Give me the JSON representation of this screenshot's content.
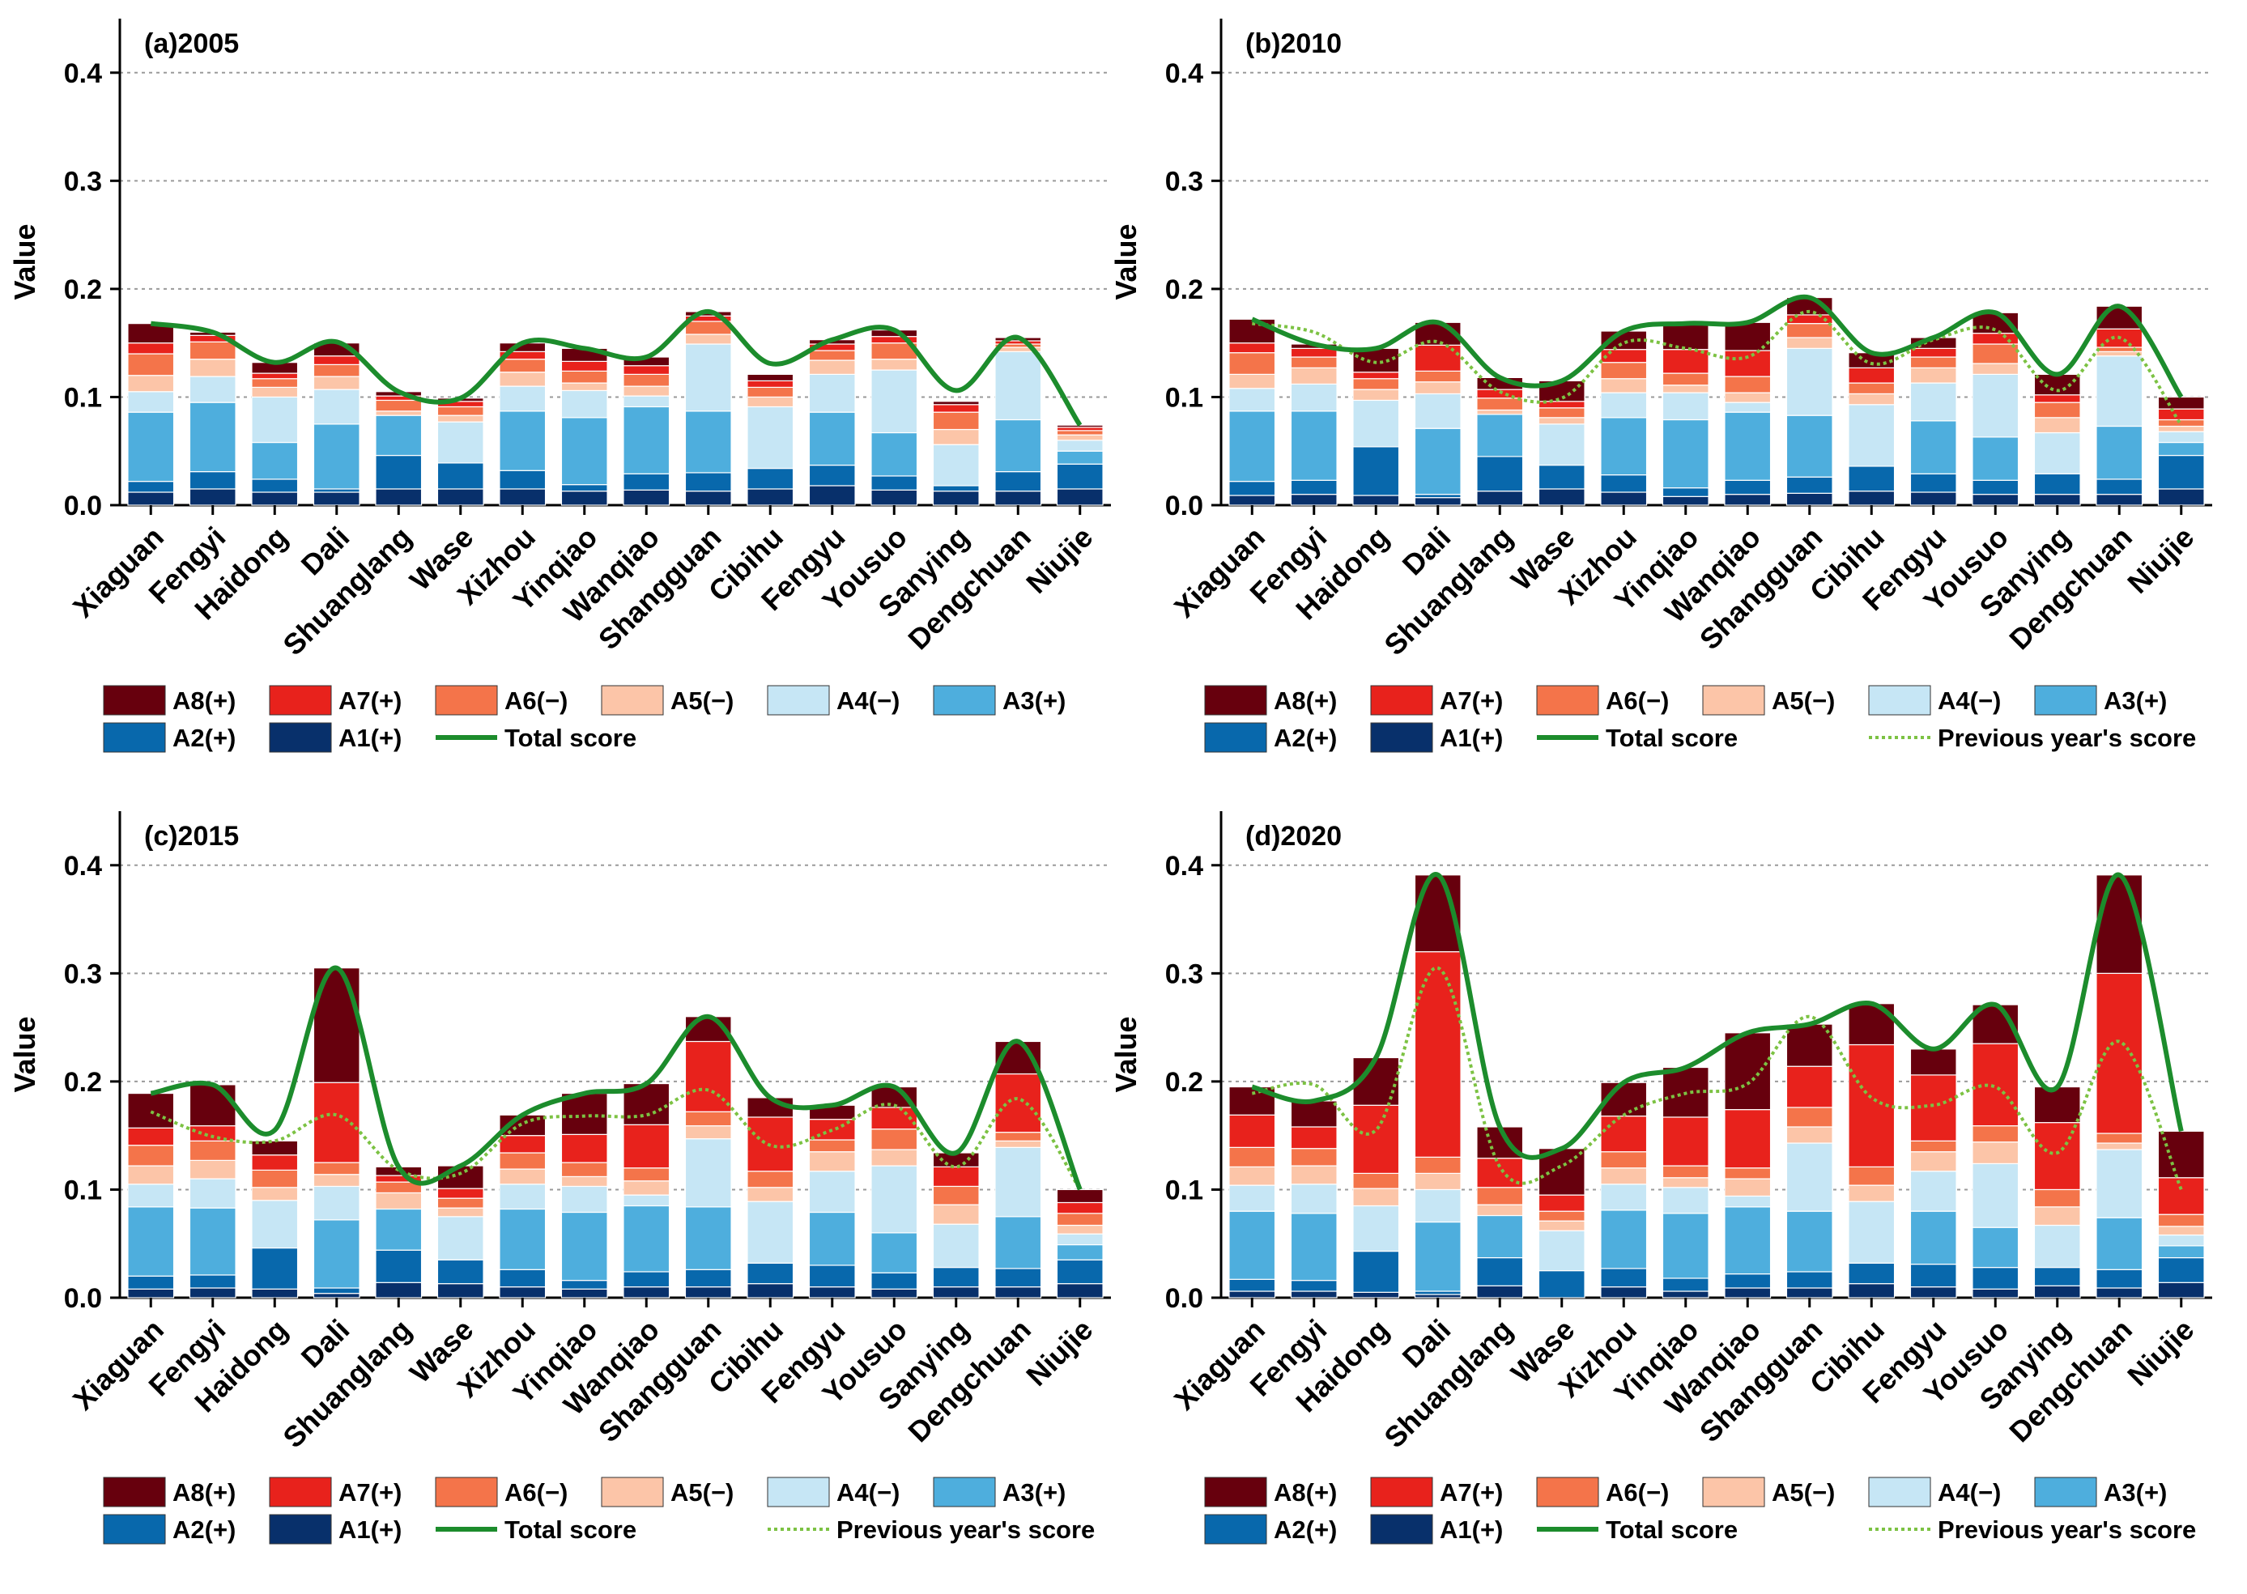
{
  "chart_data": {
    "type": "bar",
    "stacked": true,
    "ylabel": "Value",
    "ylim": [
      0,
      0.45
    ],
    "yticks": [
      0.0,
      0.1,
      0.2,
      0.3,
      0.4
    ],
    "ytick_labels": [
      "0.0",
      "0.1",
      "0.2",
      "0.3",
      "0.4"
    ],
    "categories": [
      "Xiaguan",
      "Fengyi",
      "Haidong",
      "Dali",
      "Shuanglang",
      "Wase",
      "Xizhou",
      "Yinqiao",
      "Wanqiao",
      "Shangguan",
      "Cibihu",
      "Fengyu",
      "Yousuo",
      "Sanying",
      "Dengchuan",
      "Niujie"
    ],
    "series_names": [
      "A1(+)",
      "A2(+)",
      "A3(+)",
      "A4(−)",
      "A5(−)",
      "A6(−)",
      "A7(+)",
      "A8(+)"
    ],
    "legend_order": [
      "A8(+)",
      "A7(+)",
      "A6(−)",
      "A5(−)",
      "A4(−)",
      "A3(+)",
      "A2(+)",
      "A1(+)"
    ],
    "colors": {
      "A1(+)": "#08306b",
      "A2(+)": "#0868ac",
      "A3(+)": "#4eaedd",
      "A4(−)": "#c6e6f5",
      "A5(−)": "#fcc5a8",
      "A6(−)": "#f4744a",
      "A7(+)": "#e8221c",
      "A8(+)": "#67000d",
      "total": "#1c8c2c",
      "previous": "#7cc243"
    },
    "legend_total": "Total score",
    "legend_previous": "Previous year's score",
    "panels": [
      {
        "title": "(a)2005",
        "series": [
          {
            "name": "A1(+)",
            "values": [
              0.012,
              0.015,
              0.012,
              0.012,
              0.015,
              0.015,
              0.015,
              0.013,
              0.014,
              0.013,
              0.015,
              0.018,
              0.014,
              0.013,
              0.013,
              0.015
            ]
          },
          {
            "name": "A2(+)",
            "values": [
              0.01,
              0.016,
              0.012,
              0.003,
              0.031,
              0.024,
              0.017,
              0.006,
              0.015,
              0.017,
              0.019,
              0.019,
              0.013,
              0.005,
              0.018,
              0.023
            ]
          },
          {
            "name": "A3(+)",
            "values": [
              0.064,
              0.064,
              0.034,
              0.06,
              0.037,
              0.0,
              0.055,
              0.062,
              0.062,
              0.057,
              0.0,
              0.049,
              0.04,
              0.0,
              0.048,
              0.012
            ]
          },
          {
            "name": "A4(−)",
            "values": [
              0.019,
              0.024,
              0.042,
              0.032,
              0.0,
              0.038,
              0.023,
              0.025,
              0.01,
              0.062,
              0.057,
              0.035,
              0.058,
              0.038,
              0.063,
              0.01
            ]
          },
          {
            "name": "A5(−)",
            "values": [
              0.015,
              0.016,
              0.009,
              0.012,
              0.004,
              0.006,
              0.013,
              0.007,
              0.009,
              0.009,
              0.009,
              0.013,
              0.01,
              0.014,
              0.004,
              0.005
            ]
          },
          {
            "name": "A6(−)",
            "values": [
              0.02,
              0.016,
              0.008,
              0.011,
              0.01,
              0.008,
              0.012,
              0.011,
              0.011,
              0.012,
              0.009,
              0.009,
              0.015,
              0.016,
              0.003,
              0.004
            ]
          },
          {
            "name": "A7(+)",
            "values": [
              0.01,
              0.006,
              0.005,
              0.008,
              0.004,
              0.005,
              0.007,
              0.009,
              0.008,
              0.005,
              0.006,
              0.006,
              0.006,
              0.007,
              0.003,
              0.003
            ]
          },
          {
            "name": "A8(+)",
            "values": [
              0.018,
              0.003,
              0.01,
              0.012,
              0.004,
              0.003,
              0.008,
              0.012,
              0.008,
              0.004,
              0.006,
              0.004,
              0.006,
              0.003,
              0.003,
              0.002
            ]
          }
        ],
        "total": [
          0.168,
          0.16,
          0.132,
          0.151,
          0.105,
          0.099,
          0.15,
          0.145,
          0.137,
          0.179,
          0.131,
          0.153,
          0.162,
          0.106,
          0.155,
          0.074
        ],
        "previous": null
      },
      {
        "title": "(b)2010",
        "series": [
          {
            "name": "A1(+)",
            "values": [
              0.009,
              0.01,
              0.009,
              0.007,
              0.013,
              0.015,
              0.012,
              0.008,
              0.01,
              0.011,
              0.013,
              0.012,
              0.01,
              0.01,
              0.01,
              0.015
            ]
          },
          {
            "name": "A2(+)",
            "values": [
              0.013,
              0.013,
              0.045,
              0.003,
              0.032,
              0.022,
              0.016,
              0.008,
              0.013,
              0.015,
              0.023,
              0.017,
              0.013,
              0.019,
              0.014,
              0.031
            ]
          },
          {
            "name": "A3(+)",
            "values": [
              0.065,
              0.064,
              0.0,
              0.061,
              0.039,
              0.0,
              0.053,
              0.063,
              0.063,
              0.057,
              0.0,
              0.049,
              0.04,
              0.0,
              0.049,
              0.012
            ]
          },
          {
            "name": "A4(−)",
            "values": [
              0.021,
              0.025,
              0.043,
              0.032,
              0.0,
              0.038,
              0.023,
              0.025,
              0.009,
              0.062,
              0.057,
              0.035,
              0.058,
              0.038,
              0.065,
              0.01
            ]
          },
          {
            "name": "A5(−)",
            "values": [
              0.013,
              0.015,
              0.01,
              0.011,
              0.004,
              0.006,
              0.013,
              0.007,
              0.009,
              0.01,
              0.01,
              0.014,
              0.01,
              0.014,
              0.004,
              0.005
            ]
          },
          {
            "name": "A6(−)",
            "values": [
              0.02,
              0.01,
              0.01,
              0.01,
              0.011,
              0.009,
              0.015,
              0.011,
              0.015,
              0.013,
              0.01,
              0.01,
              0.018,
              0.014,
              0.004,
              0.006
            ]
          },
          {
            "name": "A7(+)",
            "values": [
              0.009,
              0.008,
              0.006,
              0.024,
              0.008,
              0.006,
              0.012,
              0.022,
              0.024,
              0.008,
              0.014,
              0.008,
              0.01,
              0.007,
              0.017,
              0.01
            ]
          },
          {
            "name": "A8(+)",
            "values": [
              0.022,
              0.004,
              0.022,
              0.021,
              0.011,
              0.019,
              0.017,
              0.024,
              0.026,
              0.016,
              0.014,
              0.01,
              0.019,
              0.019,
              0.021,
              0.011
            ]
          }
        ],
        "total": [
          0.172,
          0.149,
          0.145,
          0.169,
          0.118,
          0.115,
          0.161,
          0.168,
          0.169,
          0.192,
          0.141,
          0.155,
          0.178,
          0.121,
          0.184,
          0.1
        ],
        "previous": [
          0.168,
          0.16,
          0.132,
          0.151,
          0.105,
          0.099,
          0.15,
          0.145,
          0.137,
          0.179,
          0.131,
          0.153,
          0.162,
          0.106,
          0.155,
          0.074
        ]
      },
      {
        "title": "(c)2015",
        "series": [
          {
            "name": "A1(+)",
            "values": [
              0.008,
              0.009,
              0.008,
              0.004,
              0.014,
              0.013,
              0.01,
              0.008,
              0.01,
              0.01,
              0.013,
              0.01,
              0.008,
              0.01,
              0.01,
              0.013
            ]
          },
          {
            "name": "A2(+)",
            "values": [
              0.012,
              0.012,
              0.038,
              0.005,
              0.03,
              0.022,
              0.016,
              0.008,
              0.014,
              0.016,
              0.019,
              0.02,
              0.015,
              0.018,
              0.017,
              0.022
            ]
          },
          {
            "name": "A3(+)",
            "values": [
              0.064,
              0.062,
              0.0,
              0.063,
              0.038,
              0.0,
              0.056,
              0.063,
              0.061,
              0.058,
              0.0,
              0.049,
              0.037,
              0.0,
              0.048,
              0.014
            ]
          },
          {
            "name": "A4(−)",
            "values": [
              0.021,
              0.027,
              0.044,
              0.031,
              0.0,
              0.04,
              0.023,
              0.024,
              0.01,
              0.063,
              0.057,
              0.038,
              0.062,
              0.04,
              0.064,
              0.01
            ]
          },
          {
            "name": "A5(−)",
            "values": [
              0.017,
              0.017,
              0.012,
              0.011,
              0.015,
              0.008,
              0.014,
              0.009,
              0.013,
              0.012,
              0.013,
              0.018,
              0.015,
              0.018,
              0.006,
              0.008
            ]
          },
          {
            "name": "A6(−)",
            "values": [
              0.019,
              0.018,
              0.016,
              0.011,
              0.01,
              0.009,
              0.015,
              0.013,
              0.012,
              0.013,
              0.015,
              0.011,
              0.019,
              0.017,
              0.008,
              0.011
            ]
          },
          {
            "name": "A7(+)",
            "values": [
              0.016,
              0.014,
              0.014,
              0.074,
              0.006,
              0.009,
              0.016,
              0.026,
              0.04,
              0.065,
              0.05,
              0.019,
              0.02,
              0.018,
              0.054,
              0.01
            ]
          },
          {
            "name": "A8(+)",
            "values": [
              0.032,
              0.038,
              0.013,
              0.106,
              0.008,
              0.021,
              0.019,
              0.038,
              0.038,
              0.023,
              0.018,
              0.013,
              0.019,
              0.013,
              0.03,
              0.012
            ]
          }
        ],
        "total": [
          0.189,
          0.197,
          0.155,
          0.305,
          0.121,
          0.122,
          0.169,
          0.189,
          0.198,
          0.26,
          0.185,
          0.178,
          0.195,
          0.134,
          0.237,
          0.1
        ],
        "previous": [
          0.172,
          0.149,
          0.145,
          0.169,
          0.118,
          0.115,
          0.161,
          0.168,
          0.169,
          0.192,
          0.141,
          0.155,
          0.178,
          0.121,
          0.184,
          0.1
        ]
      },
      {
        "title": "(d)2020",
        "series": [
          {
            "name": "A1(+)",
            "values": [
              0.006,
              0.006,
              0.005,
              0.003,
              0.011,
              0.0,
              0.01,
              0.006,
              0.009,
              0.009,
              0.013,
              0.01,
              0.008,
              0.011,
              0.009,
              0.014
            ]
          },
          {
            "name": "A2(+)",
            "values": [
              0.011,
              0.01,
              0.038,
              0.003,
              0.026,
              0.025,
              0.017,
              0.012,
              0.013,
              0.015,
              0.019,
              0.021,
              0.02,
              0.017,
              0.017,
              0.023
            ]
          },
          {
            "name": "A3(+)",
            "values": [
              0.063,
              0.062,
              0.0,
              0.064,
              0.039,
              0.0,
              0.054,
              0.06,
              0.062,
              0.056,
              0.0,
              0.049,
              0.037,
              0.0,
              0.048,
              0.011
            ]
          },
          {
            "name": "A4(−)",
            "values": [
              0.024,
              0.027,
              0.042,
              0.03,
              0.0,
              0.037,
              0.024,
              0.024,
              0.01,
              0.063,
              0.057,
              0.037,
              0.059,
              0.039,
              0.063,
              0.01
            ]
          },
          {
            "name": "A5(−)",
            "values": [
              0.017,
              0.017,
              0.016,
              0.015,
              0.01,
              0.009,
              0.015,
              0.009,
              0.016,
              0.015,
              0.015,
              0.018,
              0.02,
              0.017,
              0.006,
              0.008
            ]
          },
          {
            "name": "A6(−)",
            "values": [
              0.018,
              0.016,
              0.014,
              0.015,
              0.016,
              0.009,
              0.015,
              0.011,
              0.01,
              0.018,
              0.017,
              0.01,
              0.015,
              0.016,
              0.009,
              0.011
            ]
          },
          {
            "name": "A7(+)",
            "values": [
              0.03,
              0.02,
              0.063,
              0.19,
              0.027,
              0.015,
              0.033,
              0.045,
              0.054,
              0.038,
              0.113,
              0.061,
              0.076,
              0.062,
              0.148,
              0.034
            ]
          },
          {
            "name": "A8(+)",
            "values": [
              0.026,
              0.024,
              0.044,
              0.071,
              0.029,
              0.043,
              0.031,
              0.046,
              0.071,
              0.039,
              0.038,
              0.024,
              0.036,
              0.033,
              0.091,
              0.043
            ]
          }
        ],
        "total": [
          0.195,
          0.182,
          0.222,
          0.391,
          0.158,
          0.138,
          0.199,
          0.213,
          0.245,
          0.253,
          0.272,
          0.23,
          0.271,
          0.195,
          0.391,
          0.154
        ],
        "previous": [
          0.189,
          0.197,
          0.155,
          0.305,
          0.121,
          0.122,
          0.169,
          0.189,
          0.198,
          0.26,
          0.185,
          0.178,
          0.195,
          0.134,
          0.237,
          0.1
        ]
      }
    ]
  }
}
